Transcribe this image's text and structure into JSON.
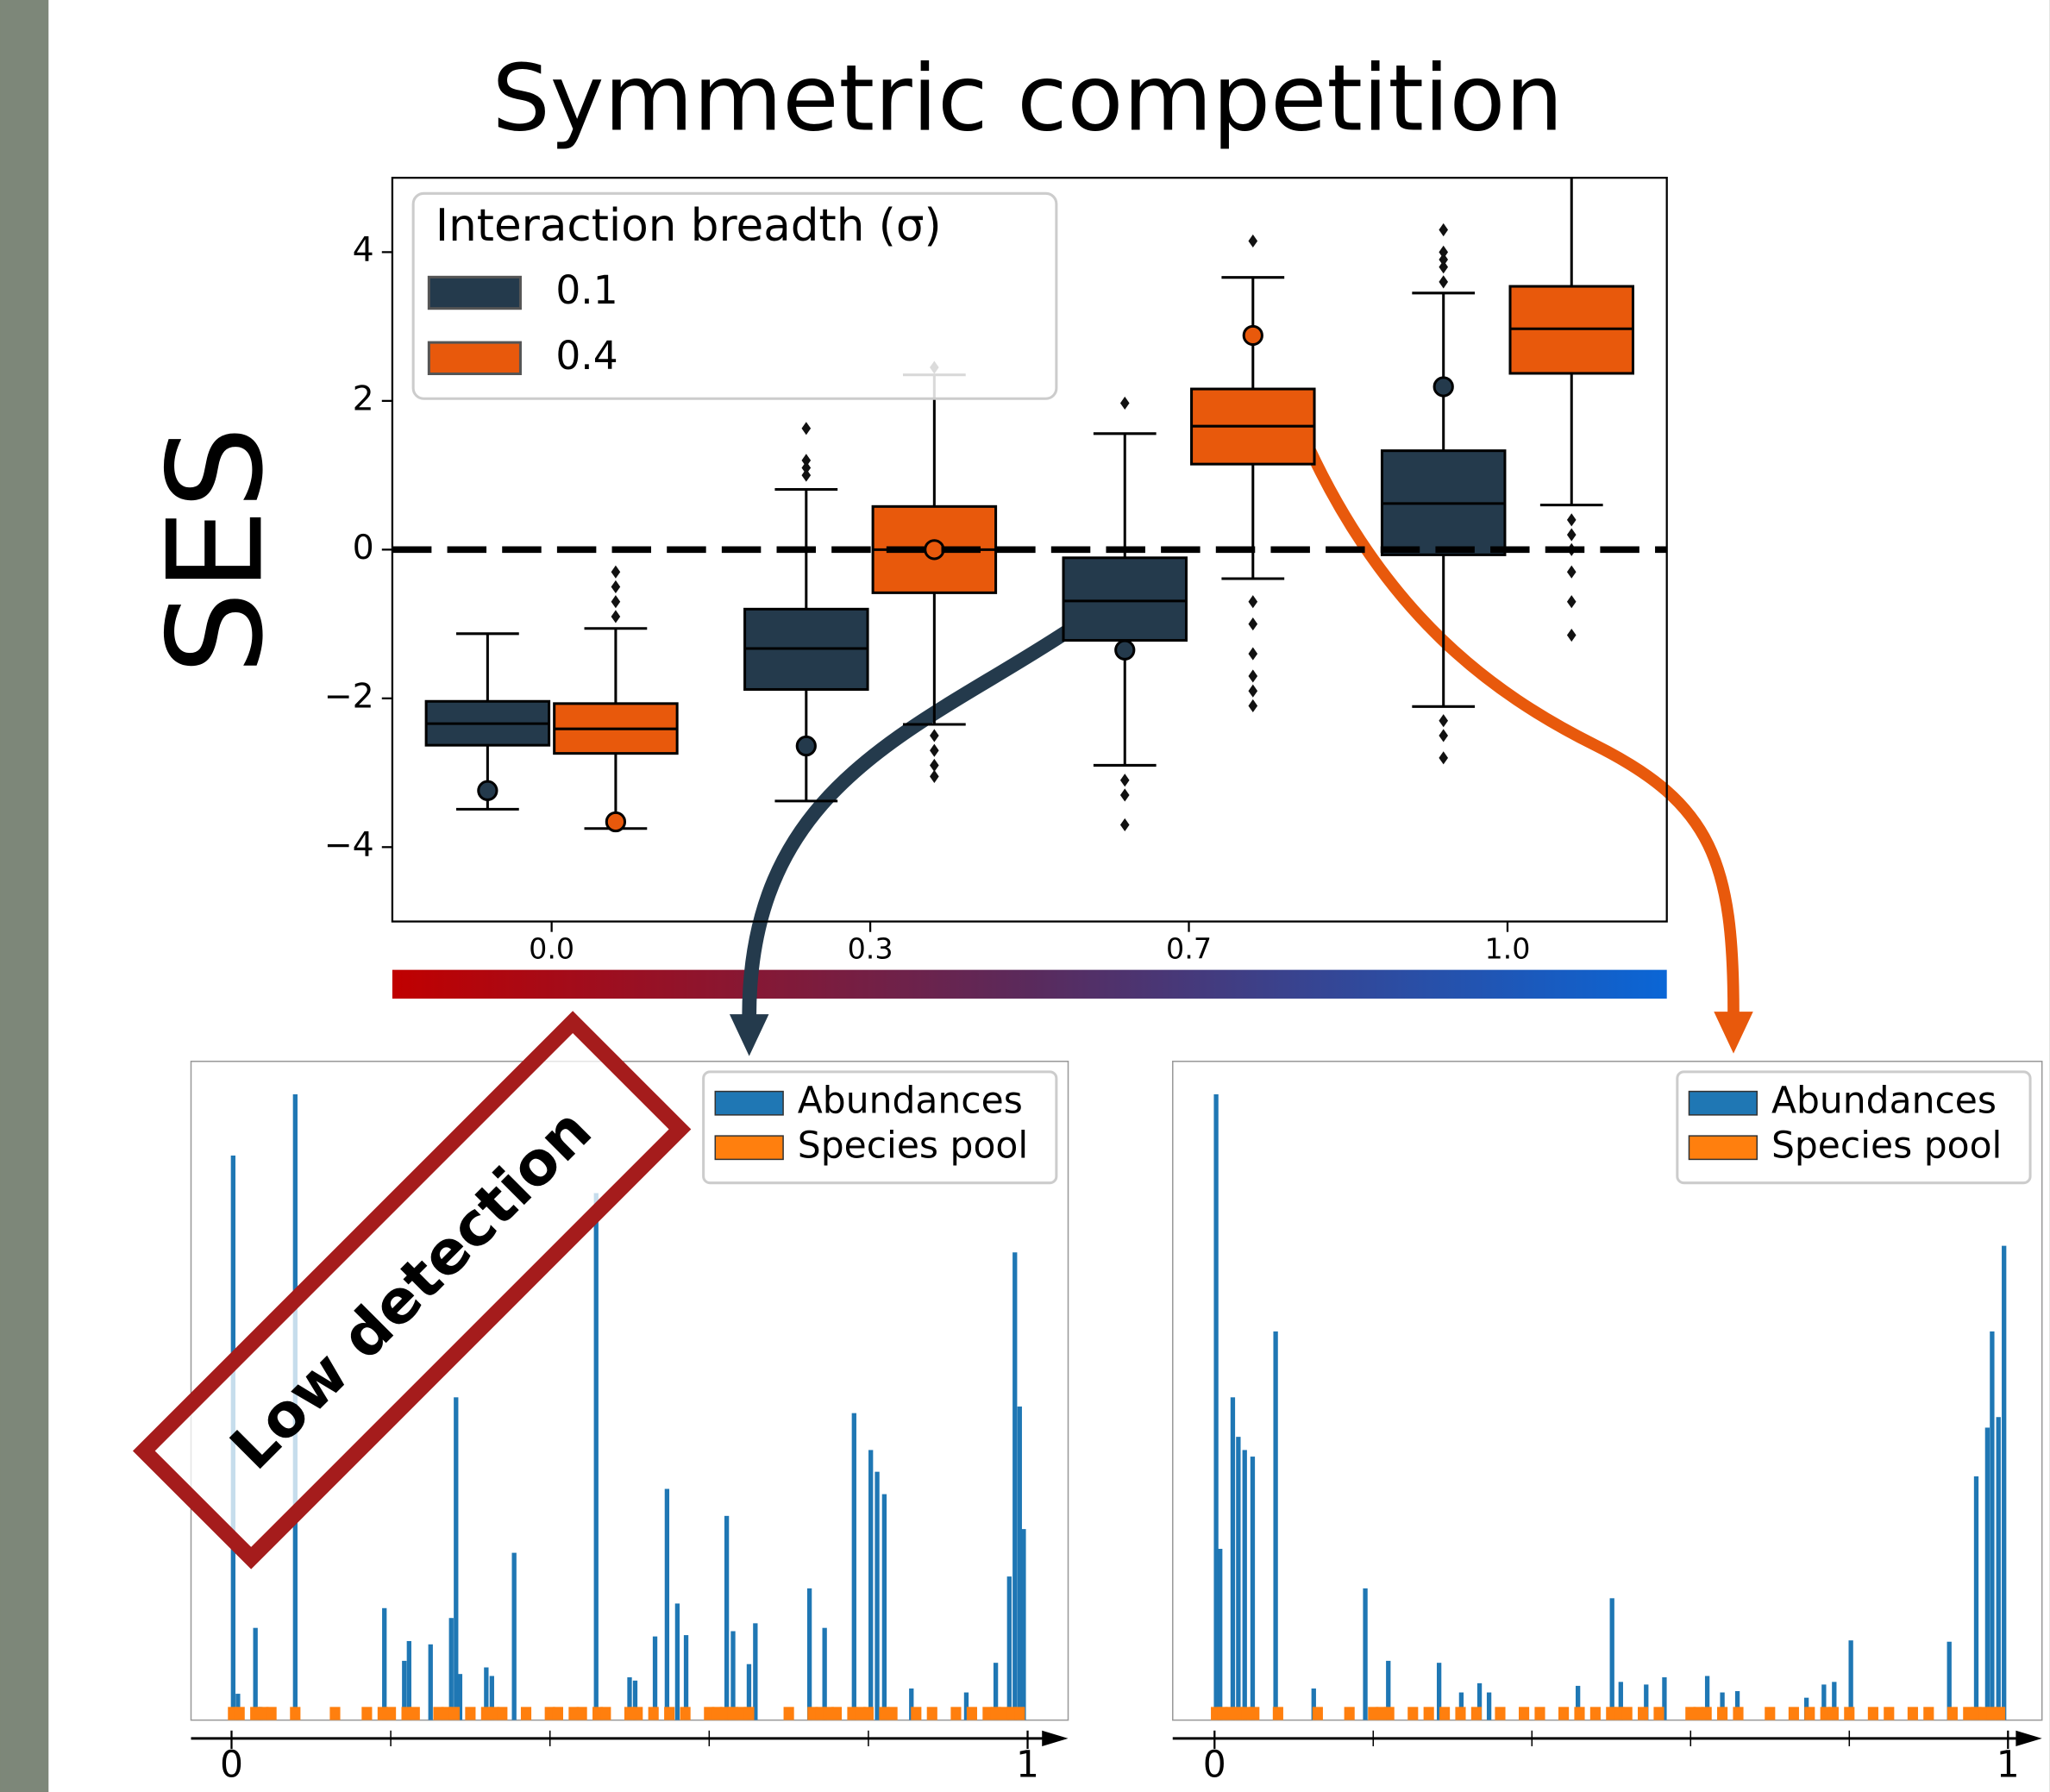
{
  "chart_data": [
    {
      "type": "box",
      "title": "Symmetric competition",
      "y_label": "SES",
      "legend_title": "Interaction breadth (σ)",
      "legend_position": "upper left",
      "categories": [
        "0.0",
        "0.3",
        "0.7",
        "1.0"
      ],
      "ylim": [
        -5,
        5
      ],
      "yticks": [
        {
          "value": -4,
          "label": "−4"
        },
        {
          "value": -2,
          "label": "−2"
        },
        0,
        2,
        4
      ],
      "hline": 0,
      "series": [
        {
          "name": "0.1",
          "color": "#243a4c",
          "whislo": [
            -3.49,
            -3.38,
            -2.9,
            -2.11
          ],
          "q1": [
            -2.63,
            -1.88,
            -1.22,
            -0.07
          ],
          "median": [
            -2.34,
            -1.33,
            -0.69,
            0.62
          ],
          "q3": [
            -2.04,
            -0.8,
            -0.11,
            1.33
          ],
          "whishi": [
            -1.13,
            0.81,
            1.56,
            3.45
          ],
          "mean": [
            -3.24,
            -2.64,
            -1.35,
            2.19
          ],
          "outliers": [
            [],
            [
              1.0,
              1.1,
              1.2,
              1.63
            ],
            [
              1.97,
              -3.1,
              -3.3,
              -3.7
            ],
            [
              3.6,
              3.8,
              3.9,
              4.0,
              4.3,
              -2.3,
              -2.5,
              -2.8
            ]
          ]
        },
        {
          "name": "0.4",
          "color": "#e8590c",
          "whislo": [
            -3.75,
            -2.35,
            -0.39,
            0.6
          ],
          "q1": [
            -2.74,
            -0.58,
            1.15,
            2.37
          ],
          "median": [
            -2.41,
            0,
            1.66,
            2.97
          ],
          "q3": [
            -2.07,
            0.58,
            2.16,
            3.54
          ],
          "whishi": [
            -1.06,
            2.35,
            3.66,
            5.8
          ],
          "mean": [
            -3.66,
            0,
            2.88,
            null
          ],
          "outliers": [
            [
              -0.3,
              -0.5,
              -0.7,
              -0.9
            ],
            [
              2.45,
              -2.5,
              -2.7,
              -2.9,
              -3.05
            ],
            [
              4.15,
              -0.7,
              -1.0,
              -1.4,
              -1.7,
              -1.9,
              -2.1
            ],
            [
              0.4,
              0.2,
              0,
              -0.3,
              -0.7,
              -1.15
            ]
          ]
        }
      ]
    },
    {
      "type": "hist",
      "annotation": "Low detection",
      "legend_position": "upper right",
      "xlim": [
        0,
        1
      ],
      "xticks": [
        0,
        1
      ],
      "minor_xticks": [
        0.2,
        0.4,
        0.6,
        0.8
      ],
      "ylim": [
        0,
        1
      ],
      "series": [
        {
          "name": "Abundances",
          "color": "#1f77b4",
          "x": [
            0.002,
            0.008,
            0.03,
            0.036,
            0.08,
            0.192,
            0.217,
            0.223,
            0.25,
            0.276,
            0.282,
            0.287,
            0.32,
            0.327,
            0.355,
            0.458,
            0.5,
            0.507,
            0.532,
            0.547,
            0.56,
            0.571,
            0.622,
            0.63,
            0.65,
            0.658,
            0.726,
            0.745,
            0.782,
            0.803,
            0.811,
            0.82,
            0.854,
            0.923,
            0.96,
            0.977,
            0.984,
            0.99,
            0.995
          ],
          "values": [
            0.857,
            0.04,
            0.14,
            0.02,
            0.95,
            0.17,
            0.09,
            0.12,
            0.115,
            0.155,
            0.49,
            0.07,
            0.08,
            0.067,
            0.254,
            0.8,
            0.065,
            0.06,
            0.127,
            0.351,
            0.177,
            0.129,
            0.31,
            0.135,
            0.085,
            0.147,
            0.2,
            0.14,
            0.466,
            0.41,
            0.377,
            0.343,
            0.048,
            0.042,
            0.087,
            0.218,
            0.71,
            0.476,
            0.29
          ]
        },
        {
          "name": "Species pool",
          "color": "#ff7f0e",
          "x": [
            0.002,
            0.01,
            0.03,
            0.04,
            0.05,
            0.08,
            0.13,
            0.17,
            0.19,
            0.2,
            0.22,
            0.23,
            0.26,
            0.27,
            0.28,
            0.3,
            0.32,
            0.33,
            0.34,
            0.37,
            0.4,
            0.41,
            0.43,
            0.44,
            0.46,
            0.47,
            0.5,
            0.51,
            0.53,
            0.55,
            0.57,
            0.6,
            0.61,
            0.62,
            0.63,
            0.64,
            0.65,
            0.7,
            0.73,
            0.74,
            0.75,
            0.76,
            0.78,
            0.79,
            0.8,
            0.82,
            0.83,
            0.86,
            0.88,
            0.91,
            0.93,
            0.95,
            0.96,
            0.97,
            0.98,
            0.99
          ],
          "values": [
            0.02,
            0.02,
            0.02,
            0.02,
            0.02,
            0.02,
            0.02,
            0.02,
            0.02,
            0.02,
            0.02,
            0.02,
            0.02,
            0.02,
            0.02,
            0.02,
            0.02,
            0.02,
            0.02,
            0.02,
            0.02,
            0.02,
            0.02,
            0.02,
            0.02,
            0.02,
            0.02,
            0.02,
            0.02,
            0.02,
            0.02,
            0.02,
            0.02,
            0.02,
            0.02,
            0.02,
            0.02,
            0.02,
            0.02,
            0.02,
            0.02,
            0.02,
            0.02,
            0.02,
            0.02,
            0.02,
            0.02,
            0.02,
            0.02,
            0.02,
            0.02,
            0.02,
            0.02,
            0.02,
            0.02,
            0.02
          ]
        }
      ]
    },
    {
      "type": "hist",
      "legend_position": "upper right",
      "xlim": [
        0,
        1
      ],
      "xticks": [
        0,
        1
      ],
      "minor_xticks": [
        0.2,
        0.4,
        0.6,
        0.8
      ],
      "ylim": [
        0,
        1
      ],
      "series": [
        {
          "name": "Abundances",
          "color": "#1f77b4",
          "x": [
            0.002,
            0.007,
            0.023,
            0.03,
            0.038,
            0.048,
            0.077,
            0.125,
            0.19,
            0.219,
            0.283,
            0.311,
            0.334,
            0.346,
            0.458,
            0.501,
            0.512,
            0.544,
            0.567,
            0.621,
            0.64,
            0.659,
            0.746,
            0.768,
            0.781,
            0.802,
            0.926,
            0.96,
            0.974,
            0.98,
            0.988,
            0.995
          ],
          "values": [
            0.95,
            0.26,
            0.49,
            0.43,
            0.41,
            0.4,
            0.59,
            0.048,
            0.2,
            0.09,
            0.087,
            0.042,
            0.056,
            0.042,
            0.052,
            0.185,
            0.058,
            0.054,
            0.065,
            0.067,
            0.042,
            0.044,
            0.034,
            0.054,
            0.058,
            0.121,
            0.119,
            0.37,
            0.444,
            0.59,
            0.46,
            0.72
          ]
        },
        {
          "name": "Species pool",
          "color": "#ff7f0e",
          "x": [
            0.002,
            0.01,
            0.02,
            0.03,
            0.04,
            0.05,
            0.08,
            0.13,
            0.17,
            0.2,
            0.21,
            0.22,
            0.25,
            0.27,
            0.29,
            0.31,
            0.33,
            0.36,
            0.39,
            0.41,
            0.44,
            0.46,
            0.48,
            0.5,
            0.51,
            0.52,
            0.54,
            0.56,
            0.6,
            0.61,
            0.62,
            0.64,
            0.66,
            0.7,
            0.73,
            0.75,
            0.77,
            0.78,
            0.8,
            0.83,
            0.85,
            0.88,
            0.9,
            0.93,
            0.95,
            0.96,
            0.97,
            0.98,
            0.99
          ],
          "values": [
            0.02,
            0.02,
            0.02,
            0.02,
            0.02,
            0.02,
            0.02,
            0.02,
            0.02,
            0.02,
            0.02,
            0.02,
            0.02,
            0.02,
            0.02,
            0.02,
            0.02,
            0.02,
            0.02,
            0.02,
            0.02,
            0.02,
            0.02,
            0.02,
            0.02,
            0.02,
            0.02,
            0.02,
            0.02,
            0.02,
            0.02,
            0.02,
            0.02,
            0.02,
            0.02,
            0.02,
            0.02,
            0.02,
            0.02,
            0.02,
            0.02,
            0.02,
            0.02,
            0.02,
            0.02,
            0.02,
            0.02,
            0.02,
            0.02
          ]
        }
      ]
    }
  ]
}
